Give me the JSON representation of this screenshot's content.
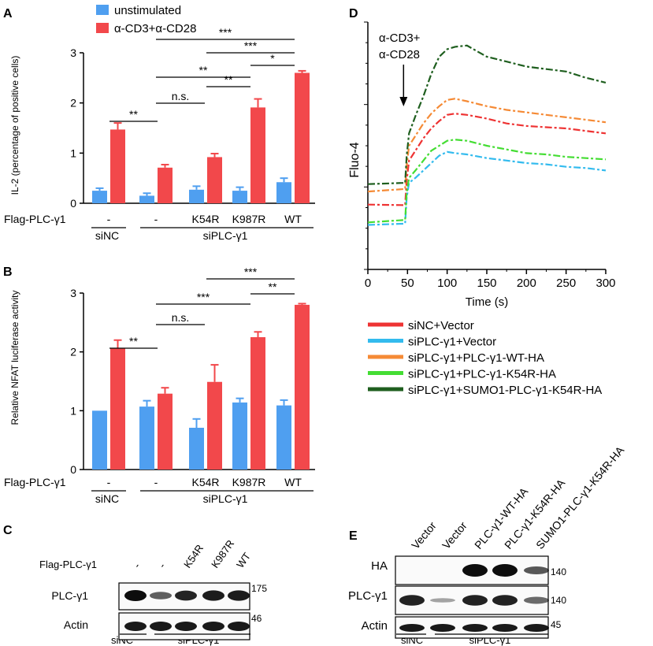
{
  "colors": {
    "unstim": "#4f9ff0",
    "stim": "#f2484b",
    "siNC_vector": "#ee3333",
    "siPLC_vector": "#33bbee",
    "wt": "#f58a35",
    "k54r": "#44dd33",
    "sumo": "#1f5f1f"
  },
  "chart_data": [
    {
      "panel": "A",
      "type": "bar",
      "ylabel": "IL-2 (percentage of positive cells)",
      "ylim": [
        0,
        3
      ],
      "yticks": [
        "0",
        "1",
        "2",
        "3"
      ],
      "legend": [
        "unstimulated",
        "α-CD3+α-CD28"
      ],
      "row_label": "Flag-PLC-γ1",
      "categories": [
        "-",
        "-",
        "K54R",
        "K987R",
        "WT"
      ],
      "group_labels": [
        "siNC",
        "siPLC-γ1"
      ],
      "series": [
        {
          "name": "unstimulated",
          "values": [
            0.25,
            0.15,
            0.27,
            0.25,
            0.42
          ],
          "errors": [
            0.05,
            0.05,
            0.07,
            0.07,
            0.08
          ]
        },
        {
          "name": "α-CD3+α-CD28",
          "values": [
            1.47,
            0.71,
            0.92,
            1.91,
            2.6
          ],
          "errors": [
            0.13,
            0.06,
            0.07,
            0.17,
            0.04
          ]
        }
      ],
      "significance": [
        {
          "label": "**"
        },
        {
          "label": "n.s."
        },
        {
          "label": "**"
        },
        {
          "label": "**"
        },
        {
          "label": "*"
        },
        {
          "label": "***"
        },
        {
          "label": "***"
        }
      ]
    },
    {
      "panel": "B",
      "type": "bar",
      "ylabel": "Relative NFAT luciferase activity",
      "ylim": [
        0,
        3
      ],
      "yticks": [
        "0",
        "1",
        "2",
        "3"
      ],
      "row_label": "Flag-PLC-γ1",
      "categories": [
        "-",
        "-",
        "K54R",
        "K987R",
        "WT"
      ],
      "group_labels": [
        "siNC",
        "siPLC-γ1"
      ],
      "series": [
        {
          "name": "unstimulated",
          "values": [
            1.0,
            1.07,
            0.71,
            1.14,
            1.09
          ],
          "errors": [
            0,
            0.1,
            0.15,
            0.07,
            0.09
          ]
        },
        {
          "name": "α-CD3+α-CD28",
          "values": [
            2.06,
            1.29,
            1.49,
            2.25,
            2.8
          ],
          "errors": [
            0.14,
            0.1,
            0.29,
            0.09,
            0.02
          ]
        }
      ],
      "significance": [
        {
          "label": "**"
        },
        {
          "label": "n.s."
        },
        {
          "label": "***"
        },
        {
          "label": "***"
        },
        {
          "label": "**"
        }
      ]
    },
    {
      "panel": "D",
      "type": "line",
      "ylabel": "Fluo-4",
      "xlabel": "Time (s)",
      "xlim": [
        0,
        300
      ],
      "xticks": [
        "0",
        "50",
        "100",
        "150",
        "200",
        "250",
        "300"
      ],
      "annotation": [
        "α-CD3+",
        "α-CD28"
      ],
      "stim_time": 47,
      "series": [
        {
          "name": "siNC+Vector",
          "color_key": "siNC_vector",
          "x": [
            0,
            47,
            49,
            52,
            60,
            70,
            80,
            90,
            100,
            110,
            125,
            150,
            175,
            200,
            225,
            250,
            275,
            300
          ],
          "y": [
            0.262,
            0.26,
            0.36,
            0.44,
            0.48,
            0.53,
            0.57,
            0.6,
            0.625,
            0.63,
            0.625,
            0.61,
            0.59,
            0.58,
            0.575,
            0.57,
            0.56,
            0.55
          ]
        },
        {
          "name": "siPLC-γ1+Vector",
          "color_key": "siPLC_vector",
          "x": [
            0,
            47,
            49,
            52,
            60,
            70,
            80,
            90,
            100,
            110,
            125,
            150,
            175,
            200,
            225,
            250,
            275,
            300
          ],
          "y": [
            0.18,
            0.185,
            0.29,
            0.35,
            0.37,
            0.4,
            0.43,
            0.46,
            0.475,
            0.47,
            0.465,
            0.45,
            0.44,
            0.43,
            0.425,
            0.415,
            0.41,
            0.4
          ]
        },
        {
          "name": "siPLC-γ1+PLC-γ1-WT-HA",
          "color_key": "wt",
          "x": [
            0,
            47,
            49,
            52,
            60,
            70,
            80,
            90,
            100,
            110,
            125,
            150,
            175,
            200,
            225,
            250,
            275,
            300
          ],
          "y": [
            0.315,
            0.325,
            0.42,
            0.5,
            0.54,
            0.59,
            0.63,
            0.66,
            0.685,
            0.69,
            0.68,
            0.66,
            0.645,
            0.635,
            0.625,
            0.615,
            0.605,
            0.595
          ]
        },
        {
          "name": "siPLC-γ1+PLC-γ1-K54R-HA",
          "color_key": "k54r",
          "x": [
            0,
            47,
            49,
            52,
            60,
            70,
            80,
            90,
            100,
            110,
            125,
            150,
            175,
            200,
            225,
            250,
            275,
            300
          ],
          "y": [
            0.19,
            0.2,
            0.31,
            0.37,
            0.4,
            0.44,
            0.48,
            0.5,
            0.52,
            0.525,
            0.52,
            0.5,
            0.485,
            0.47,
            0.465,
            0.455,
            0.45,
            0.445
          ]
        },
        {
          "name": "siPLC-γ1+SUMO1-PLC-γ1-K54R-HA",
          "color_key": "sumo",
          "x": [
            0,
            47,
            49,
            52,
            60,
            70,
            80,
            90,
            100,
            110,
            125,
            150,
            175,
            200,
            225,
            250,
            275,
            300
          ],
          "y": [
            0.345,
            0.35,
            0.46,
            0.55,
            0.62,
            0.7,
            0.79,
            0.86,
            0.89,
            0.9,
            0.905,
            0.86,
            0.84,
            0.82,
            0.81,
            0.8,
            0.775,
            0.755
          ]
        }
      ]
    }
  ],
  "panels": {
    "a": "A",
    "b": "B",
    "c": "C",
    "d": "D",
    "e": "E"
  },
  "blot_c": {
    "row_label": "Flag-PLC-γ1",
    "lane_labels": [
      "-",
      "-",
      "K54R",
      "K987R",
      "WT"
    ],
    "bands": [
      "PLC-γ1",
      "Actin"
    ],
    "markers": [
      "175",
      "46"
    ],
    "group_labels": [
      "siNC",
      "siPLC-γ1"
    ]
  },
  "blot_e": {
    "lane_labels": [
      "Vector",
      "Vector",
      "PLC-γ1-WT-HA",
      "PLC-γ1-K54R-HA",
      "SUMO1-PLC-γ1-K54R-HA"
    ],
    "bands": [
      "HA",
      "PLC-γ1",
      "Actin"
    ],
    "markers": [
      "140",
      "140",
      "45"
    ],
    "group_labels": [
      "siNC",
      "siPLC-γ1"
    ]
  }
}
